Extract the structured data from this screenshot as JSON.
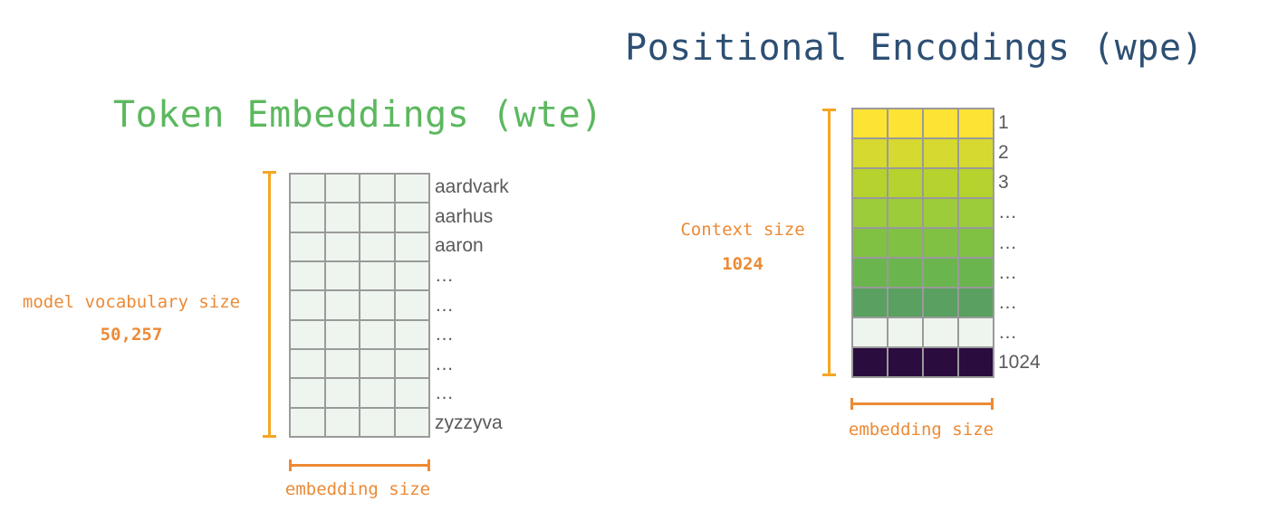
{
  "titles": {
    "positional": "Positional Encodings (wpe)",
    "token": "Token Embeddings (wte)"
  },
  "wte": {
    "vocab_label": "model vocabulary size",
    "vocab_value": "50,257",
    "embedding_label": "embedding size",
    "rows": [
      "aardvark",
      "aarhus",
      "aaron",
      "…",
      "…",
      "…",
      "…",
      "…",
      "zyzzyva"
    ],
    "cell_color": "#eef5ee"
  },
  "wpe": {
    "context_label": "Context size",
    "context_value": "1024",
    "embedding_label": "embedding size",
    "rows": [
      {
        "label": "1",
        "color": "#fde334"
      },
      {
        "label": "2",
        "color": "#d6d92f"
      },
      {
        "label": "3",
        "color": "#b6d22e"
      },
      {
        "label": "…",
        "color": "#9ccc3a"
      },
      {
        "label": "…",
        "color": "#80c043"
      },
      {
        "label": "…",
        "color": "#6bb54e"
      },
      {
        "label": "…",
        "color": "#5aa060"
      },
      {
        "label": "…",
        "color": "#eef5ee"
      },
      {
        "label": "1024",
        "color": "#2b0c3e"
      }
    ]
  },
  "colors": {
    "title_wpe": "#2d4f73",
    "title_wte": "#5cb85f",
    "bracket": "#f5a623",
    "label": "#ec8a35"
  }
}
